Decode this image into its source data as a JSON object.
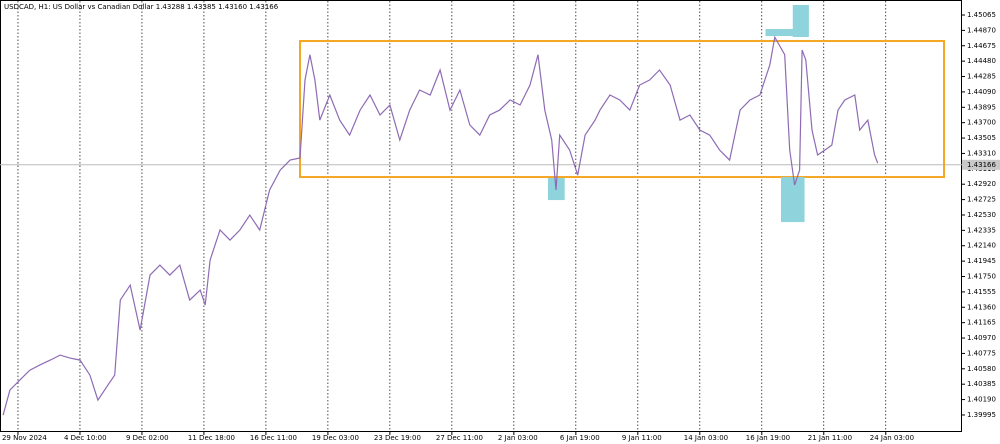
{
  "chart_data": {
    "type": "line",
    "title": "USDCAD, H1:  US Dollar vs Canadian Dollar  1.43288 1.43385 1.43160 1.43166",
    "series": [
      {
        "color": "#8e6bb5",
        "x": [
          -0.24,
          -0.13,
          0.03,
          0.19,
          0.35,
          0.52,
          0.68,
          0.84,
          1,
          1.16,
          1.29,
          1.45,
          1.56,
          1.65,
          1.81,
          1.97,
          2.13,
          2.29,
          2.45,
          2.61,
          2.77,
          2.94,
          3.02,
          3.1,
          3.26,
          3.42,
          3.58,
          3.74,
          3.9,
          4.06,
          4.23,
          4.39,
          4.55,
          4.63,
          4.71,
          4.79,
          4.87,
          5.03,
          5.19,
          5.35,
          5.52,
          5.68,
          5.84,
          6,
          6.16,
          6.32,
          6.48,
          6.65,
          6.81,
          6.97,
          7.13,
          7.29,
          7.45,
          7.61,
          7.77,
          7.94,
          8.1,
          8.26,
          8.39,
          8.5,
          8.61,
          8.68,
          8.74,
          8.9,
          9.03,
          9.15,
          9.31,
          9.39,
          9.55,
          9.71,
          9.87,
          10.03,
          10.19,
          10.35,
          10.52,
          10.68,
          10.84,
          11,
          11.16,
          11.32,
          11.48,
          11.65,
          11.81,
          11.97,
          12.13,
          12.21,
          12.37,
          12.45,
          12.53,
          12.61,
          12.65,
          12.71,
          12.81,
          12.9,
          13.02,
          13.13,
          13.23,
          13.34,
          13.5,
          13.58,
          13.71,
          13.82,
          13.87
        ],
        "values": [
          1.39993,
          1.4031,
          1.40437,
          1.40563,
          1.40627,
          1.4069,
          1.40754,
          1.40716,
          1.4069,
          1.405,
          1.40183,
          1.40373,
          1.405,
          1.41451,
          1.41641,
          1.41071,
          1.41768,
          1.41895,
          1.41768,
          1.41895,
          1.41451,
          1.41578,
          1.41388,
          1.41958,
          1.42339,
          1.42212,
          1.42339,
          1.42529,
          1.42339,
          1.42846,
          1.43099,
          1.43226,
          1.43252,
          1.44241,
          1.44561,
          1.44241,
          1.43733,
          1.44051,
          1.43733,
          1.43543,
          1.4386,
          1.44051,
          1.43797,
          1.43924,
          1.4348,
          1.4386,
          1.44114,
          1.44051,
          1.44368,
          1.4386,
          1.44114,
          1.4367,
          1.43543,
          1.43797,
          1.4386,
          1.43987,
          1.43924,
          1.44177,
          1.44561,
          1.4386,
          1.4348,
          1.42846,
          1.43543,
          1.43353,
          1.43036,
          1.43543,
          1.43733,
          1.4386,
          1.44051,
          1.43987,
          1.4386,
          1.44177,
          1.44241,
          1.44368,
          1.44177,
          1.43733,
          1.43797,
          1.43607,
          1.43543,
          1.43353,
          1.43226,
          1.4386,
          1.43987,
          1.44051,
          1.44431,
          1.44783,
          1.44561,
          1.43353,
          1.42909,
          1.43099,
          1.44621,
          1.44495,
          1.43607,
          1.4329,
          1.43353,
          1.43416,
          1.4386,
          1.43987,
          1.44051,
          1.43607,
          1.43733,
          1.4329,
          1.43188
        ]
      }
    ],
    "xlim": [
      -0.29,
      15.23
    ],
    "ylim": [
      1.39779,
      1.45255
    ],
    "xticks": [
      {
        "value": 0,
        "label": "29 Nov 2024"
      },
      {
        "value": 1,
        "label": "4 Dec 10:00"
      },
      {
        "value": 2,
        "label": "9 Dec 02:00"
      },
      {
        "value": 3,
        "label": "11 Dec 18:00"
      },
      {
        "value": 4,
        "label": "16 Dec 11:00"
      },
      {
        "value": 5,
        "label": "19 Dec 03:00"
      },
      {
        "value": 6,
        "label": "23 Dec 19:00"
      },
      {
        "value": 7,
        "label": "27 Dec 11:00"
      },
      {
        "value": 8,
        "label": "2 Jan 03:00"
      },
      {
        "value": 9,
        "label": "6 Jan 19:00"
      },
      {
        "value": 10,
        "label": "9 Jan 11:00"
      },
      {
        "value": 11,
        "label": "14 Jan 03:00"
      },
      {
        "value": 12,
        "label": "16 Jan 19:00"
      },
      {
        "value": 13,
        "label": "21 Jan 11:00"
      },
      {
        "value": 14,
        "label": "24 Jan 03:00"
      }
    ],
    "yticks": [
      1.45065,
      {
        "value": 1.4487,
        "label": "1.44870"
      },
      1.44675,
      {
        "value": 1.4448,
        "label": "1.44480"
      },
      1.44285,
      {
        "value": 1.4409,
        "label": "1.44090"
      },
      1.43895,
      {
        "value": 1.437,
        "label": "1.43700"
      },
      1.43505,
      {
        "value": 1.4331,
        "label": "1.43310"
      },
      1.43115,
      {
        "value": 1.4292,
        "label": "1.42920"
      },
      1.42725,
      {
        "value": 1.4253,
        "label": "1.42530"
      },
      1.42335,
      {
        "value": 1.4214,
        "label": "1.42140"
      },
      1.41945,
      {
        "value": 1.4175,
        "label": "1.41750"
      },
      1.41555,
      {
        "value": 1.4136,
        "label": "1.41360"
      },
      1.41165,
      {
        "value": 1.4097,
        "label": "1.40970"
      },
      1.40775,
      {
        "value": 1.4058,
        "label": "1.40580"
      },
      1.40385,
      {
        "value": 1.4019,
        "label": "1.40190"
      },
      1.39995
    ],
    "last_price": {
      "value": 1.43166,
      "label": "1.43166"
    },
    "boxes": [
      {
        "color": "#f5a623",
        "xlim": [
          4.55,
          14.94
        ],
        "ylim": [
          1.43011,
          1.44735
        ]
      },
      {
        "color": "#8fd3dc",
        "xlim": [
          8.55,
          8.82
        ],
        "ylim": [
          1.42719,
          1.42998
        ]
      },
      {
        "color": "#8fd3dc",
        "xlim": [
          12.06,
          12.52
        ],
        "ylim": [
          1.44798,
          1.44887
        ]
      },
      {
        "color": "#8fd3dc",
        "xlim": [
          12.5,
          12.76
        ],
        "ylim": [
          1.44786,
          1.45192
        ]
      },
      {
        "color": "#8fd3dc",
        "xlim": [
          12.31,
          12.69
        ],
        "ylim": [
          1.4244,
          1.43011
        ]
      }
    ]
  }
}
